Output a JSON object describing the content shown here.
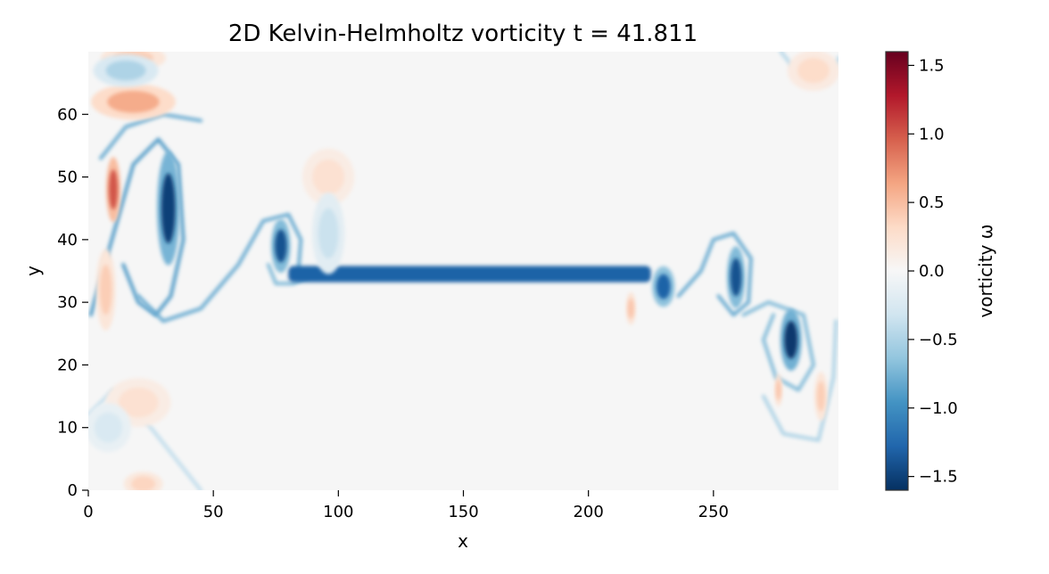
{
  "chart_data": {
    "type": "heatmap",
    "title": "2D Kelvin-Helmholtz vorticity  t = 41.811",
    "xlabel": "x",
    "ylabel": "y",
    "xlim": [
      0,
      300
    ],
    "ylim": [
      0,
      70
    ],
    "xticks": [
      0,
      50,
      100,
      150,
      200,
      250
    ],
    "yticks": [
      0,
      10,
      20,
      30,
      40,
      50,
      60
    ],
    "xtick_labels": [
      "0",
      "50",
      "100",
      "150",
      "200",
      "250"
    ],
    "ytick_labels": [
      "0",
      "10",
      "20",
      "30",
      "40",
      "50",
      "60"
    ],
    "colorbar": {
      "label": "vorticity ω",
      "colormap": "RdBu_r",
      "range": [
        -1.6,
        1.6
      ],
      "ticks": [
        1.5,
        1.0,
        0.5,
        0.0,
        -0.5,
        -1.0,
        -1.5
      ],
      "tick_labels": [
        "1.5",
        "1.0",
        "0.5",
        "0.0",
        "−0.5",
        "−1.0",
        "−1.5"
      ]
    },
    "background_value": 0.0,
    "features": [
      {
        "name": "shear-layer-band",
        "kind": "band",
        "x0": 80,
        "x1": 225,
        "y": 34.5,
        "half_thickness": 1.3,
        "value": -1.3
      },
      {
        "name": "vortex-a",
        "kind": "blob",
        "x": 32,
        "y": 45,
        "rx": 3.5,
        "ry": 7,
        "value": -1.5
      },
      {
        "name": "vortex-b",
        "kind": "blob",
        "x": 77,
        "y": 39,
        "rx": 3,
        "ry": 3.3,
        "value": -1.4
      },
      {
        "name": "vortex-c",
        "kind": "blob",
        "x": 230,
        "y": 32.5,
        "rx": 3.5,
        "ry": 2.5,
        "value": -1.3
      },
      {
        "name": "vortex-d",
        "kind": "blob",
        "x": 259,
        "y": 34,
        "rx": 2.8,
        "ry": 3.8,
        "value": -1.4
      },
      {
        "name": "vortex-e",
        "kind": "blob",
        "x": 281,
        "y": 24,
        "rx": 3.3,
        "ry": 3.8,
        "value": -1.55
      },
      {
        "name": "positive-blob-left",
        "kind": "blob",
        "x": 10,
        "y": 48,
        "rx": 2.2,
        "ry": 4,
        "value": 1.0
      },
      {
        "name": "positive-band-top-left",
        "kind": "blob",
        "x": 18,
        "y": 62,
        "rx": 13,
        "ry": 2.2,
        "value": 0.6
      },
      {
        "name": "positive-top-left",
        "kind": "blob",
        "x": 18,
        "y": 69,
        "rx": 10,
        "ry": 1.5,
        "value": 0.4
      },
      {
        "name": "positive-patch-mid",
        "kind": "blob",
        "x": 96,
        "y": 50,
        "rx": 8,
        "ry": 3.5,
        "value": 0.25
      },
      {
        "name": "positive-small-right",
        "kind": "blob",
        "x": 217,
        "y": 29,
        "rx": 1.5,
        "ry": 2,
        "value": 0.45
      },
      {
        "name": "positive-small-far-right",
        "kind": "blob",
        "x": 276,
        "y": 16,
        "rx": 1.2,
        "ry": 2,
        "value": 0.45
      },
      {
        "name": "positive-far-right-low",
        "kind": "blob",
        "x": 293,
        "y": 15,
        "rx": 2,
        "ry": 3,
        "value": 0.4
      },
      {
        "name": "positive-left-mid",
        "kind": "blob",
        "x": 7,
        "y": 32,
        "rx": 3,
        "ry": 5,
        "value": 0.4
      },
      {
        "name": "positive-bottom-left",
        "kind": "blob",
        "x": 20,
        "y": 14,
        "rx": 10,
        "ry": 3,
        "value": 0.25
      },
      {
        "name": "positive-bottom",
        "kind": "blob",
        "x": 22,
        "y": 1,
        "rx": 6,
        "ry": 1.5,
        "value": 0.35
      },
      {
        "name": "positive-top-right",
        "kind": "blob",
        "x": 290,
        "y": 67,
        "rx": 8,
        "ry": 2.5,
        "value": 0.3
      },
      {
        "name": "negative-top-left",
        "kind": "blob",
        "x": 15,
        "y": 67,
        "rx": 10,
        "ry": 2,
        "value": -0.5
      },
      {
        "name": "negative-diag-mid",
        "kind": "blob",
        "x": 96,
        "y": 41,
        "rx": 5,
        "ry": 5,
        "value": -0.35
      },
      {
        "name": "negative-left-low",
        "kind": "blob",
        "x": 8,
        "y": 10,
        "rx": 7,
        "ry": 3,
        "value": -0.25
      }
    ],
    "filaments": [
      {
        "name": "filament-spiral-a",
        "value": -0.9,
        "points": [
          [
            1,
            28
          ],
          [
            8,
            38
          ],
          [
            18,
            52
          ],
          [
            28,
            56
          ],
          [
            36,
            52
          ],
          [
            38,
            40
          ],
          [
            33,
            31
          ],
          [
            27,
            28
          ],
          [
            20,
            30
          ],
          [
            14,
            36
          ]
        ]
      },
      {
        "name": "filament-arm-a",
        "value": -0.8,
        "points": [
          [
            5,
            53
          ],
          [
            15,
            58
          ],
          [
            30,
            60
          ],
          [
            45,
            59
          ]
        ]
      },
      {
        "name": "filament-s-curve",
        "value": -0.8,
        "points": [
          [
            20,
            31
          ],
          [
            30,
            27
          ],
          [
            45,
            29
          ],
          [
            60,
            36
          ],
          [
            70,
            43
          ],
          [
            80,
            44
          ],
          [
            85,
            40
          ],
          [
            84,
            35
          ]
        ]
      },
      {
        "name": "filament-spiral-b",
        "value": -0.7,
        "points": [
          [
            72,
            36
          ],
          [
            75,
            33
          ],
          [
            82,
            33
          ],
          [
            90,
            34.5
          ]
        ]
      },
      {
        "name": "filament-spiral-d",
        "value": -0.8,
        "points": [
          [
            236,
            31
          ],
          [
            245,
            35
          ],
          [
            250,
            40
          ],
          [
            258,
            41
          ],
          [
            265,
            37
          ],
          [
            264,
            30
          ],
          [
            258,
            28
          ],
          [
            252,
            31
          ]
        ]
      },
      {
        "name": "filament-spiral-e",
        "value": -0.7,
        "points": [
          [
            262,
            28
          ],
          [
            272,
            30
          ],
          [
            286,
            28
          ],
          [
            290,
            20
          ],
          [
            284,
            16
          ],
          [
            275,
            18
          ],
          [
            270,
            24
          ],
          [
            274,
            28
          ]
        ]
      },
      {
        "name": "filament-tail-e",
        "value": -0.5,
        "points": [
          [
            270,
            15
          ],
          [
            278,
            9
          ],
          [
            292,
            8
          ],
          [
            298,
            18
          ],
          [
            299,
            27
          ]
        ]
      },
      {
        "name": "filament-lower-left",
        "value": -0.4,
        "points": [
          [
            0,
            12
          ],
          [
            10,
            16
          ],
          [
            25,
            10
          ],
          [
            35,
            5
          ],
          [
            45,
            0
          ]
        ]
      },
      {
        "name": "filament-top-right",
        "value": -0.45,
        "points": [
          [
            277,
            70
          ],
          [
            285,
            66
          ],
          [
            295,
            65
          ],
          [
            300,
            69
          ]
        ]
      }
    ]
  }
}
